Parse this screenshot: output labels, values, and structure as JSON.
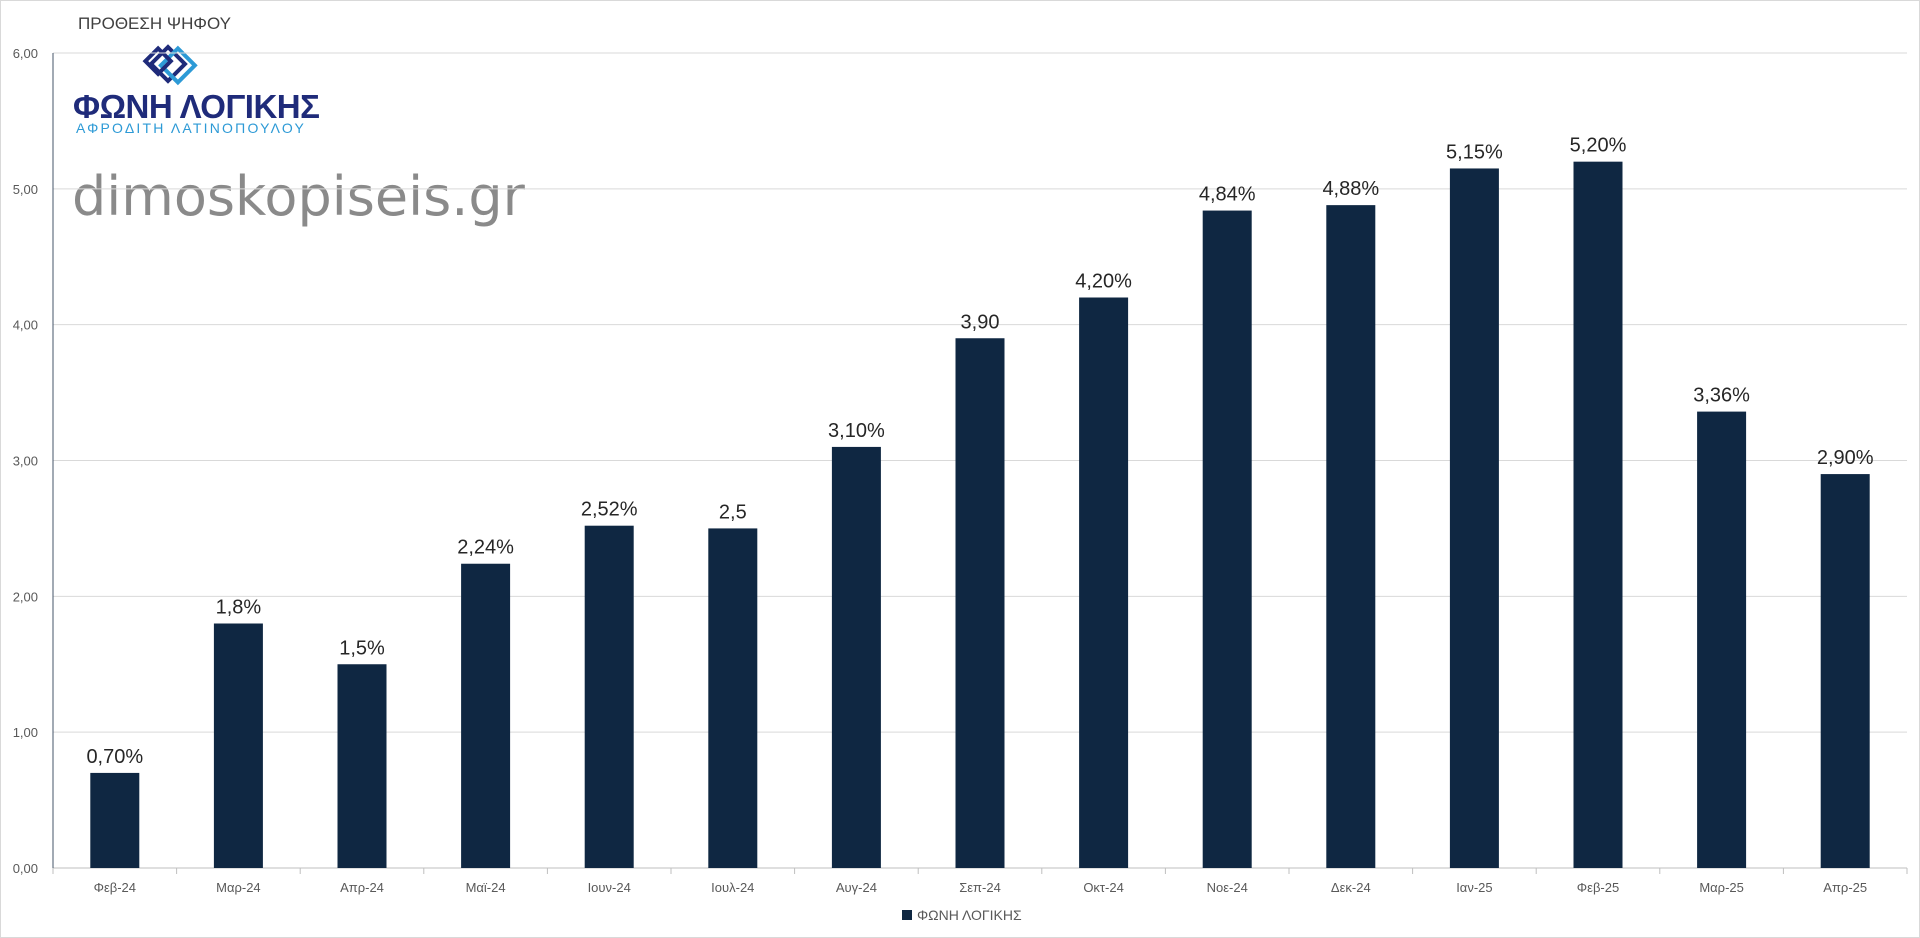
{
  "chart_data": {
    "type": "bar",
    "title": "ΠΡΟΘΕΣΗ ΨΗΦΟΥ",
    "categories": [
      "Φεβ-24",
      "Μαρ-24",
      "Απρ-24",
      "Μαϊ-24",
      "Ιουν-24",
      "Ιουλ-24",
      "Αυγ-24",
      "Σεπ-24",
      "Οκτ-24",
      "Νοε-24",
      "Δεκ-24",
      "Ιαν-25",
      "Φεβ-25",
      "Μαρ-25",
      "Απρ-25"
    ],
    "series": [
      {
        "name": "ΦΩΝΗ ΛΟΓΙΚΗΣ",
        "values": [
          0.7,
          1.8,
          1.5,
          2.24,
          2.52,
          2.5,
          3.1,
          3.9,
          4.2,
          4.84,
          4.88,
          5.15,
          5.2,
          3.36,
          2.9
        ],
        "data_labels": [
          "0,70%",
          "1,8%",
          "1,5%",
          "2,24%",
          "2,52%",
          "2,5",
          "3,10%",
          "3,90",
          "4,20%",
          "4,84%",
          "4,88%",
          "5,15%",
          "5,20%",
          "3,36%",
          "2,90%"
        ],
        "color": "#0f2742"
      }
    ],
    "ylim": [
      0,
      6
    ],
    "yticks": [
      "0,00",
      "1,00",
      "2,00",
      "3,00",
      "4,00",
      "5,00",
      "6,00"
    ],
    "xlabel": "",
    "ylabel": "",
    "grid": true,
    "legend_position": "bottom-center"
  },
  "logo": {
    "name": "ΦΩΝΗ ΛΟΓΙΚΗΣ",
    "subtitle": "ΑΦΡΟΔΙΤΗ ΛΑΤΙΝΟΠΟΥΛΟΥ"
  },
  "watermark": "dimoskopiseis.gr",
  "colors": {
    "bar": "#0f2742",
    "grid": "#d9d9d9",
    "logo_dark": "#1f2b7a",
    "logo_light": "#2d9ad6"
  }
}
